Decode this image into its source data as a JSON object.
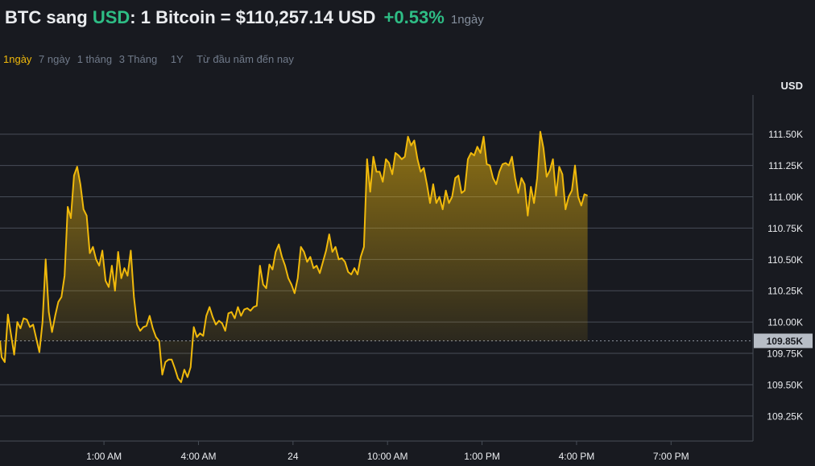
{
  "header": {
    "base": "BTC",
    "word": "sang",
    "quote": "USD",
    "sep": ":",
    "rate": "1 Bitcoin = $110,257.14 USD",
    "change": "+0.53%",
    "period": "1ngày"
  },
  "tabs": [
    "1ngày",
    "7 ngày",
    "1 tháng",
    "3 Tháng",
    "1Y",
    "Từ đầu năm đến nay"
  ],
  "active_tab": 0,
  "colors": {
    "background": "#181a20",
    "line": "#f0b90b",
    "positive": "#2ebd85",
    "grid": "#474d57",
    "axis_text": "#eaecef",
    "marker_bg": "#b7bdc6"
  },
  "chart_data": {
    "type": "area",
    "unit_label": "USD",
    "y_ticks": [
      109250,
      109500,
      109750,
      110000,
      110250,
      110500,
      110750,
      111000,
      111250,
      111500
    ],
    "y_tick_labels": [
      "109.25K",
      "109.50K",
      "109.75K",
      "110.00K",
      "110.25K",
      "110.50K",
      "110.75K",
      "111.00K",
      "111.25K",
      "111.50K"
    ],
    "ylim": [
      109050,
      111800
    ],
    "x_ticks": [
      {
        "label": "1:00 AM",
        "t": 1.0
      },
      {
        "label": "4:00 AM",
        "t": 4.0
      },
      {
        "label": "24",
        "t": 7.0
      },
      {
        "label": "10:00 AM",
        "t": 10.0
      },
      {
        "label": "1:00 PM",
        "t": 13.0
      },
      {
        "label": "4:00 PM",
        "t": 16.0
      },
      {
        "label": "7:00 PM",
        "t": 19.0
      }
    ],
    "xlim": [
      -2.3,
      21.6
    ],
    "reference_value": 109850,
    "reference_label": "109.85K",
    "series": [
      {
        "values": [
          [
            -2.3,
            109850
          ],
          [
            -2.25,
            109720
          ],
          [
            -2.15,
            109680
          ],
          [
            -2.05,
            110060
          ],
          [
            -1.95,
            109900
          ],
          [
            -1.85,
            109740
          ],
          [
            -1.75,
            110000
          ],
          [
            -1.65,
            109950
          ],
          [
            -1.55,
            110030
          ],
          [
            -1.45,
            110020
          ],
          [
            -1.35,
            109960
          ],
          [
            -1.25,
            109980
          ],
          [
            -1.15,
            109870
          ],
          [
            -1.05,
            109760
          ],
          [
            -0.95,
            110000
          ],
          [
            -0.85,
            110500
          ],
          [
            -0.75,
            110080
          ],
          [
            -0.65,
            109920
          ],
          [
            -0.55,
            110050
          ],
          [
            -0.45,
            110160
          ],
          [
            -0.35,
            110200
          ],
          [
            -0.25,
            110370
          ],
          [
            -0.15,
            110920
          ],
          [
            -0.05,
            110830
          ],
          [
            0.05,
            111170
          ],
          [
            0.15,
            111240
          ],
          [
            0.25,
            111100
          ],
          [
            0.35,
            110900
          ],
          [
            0.45,
            110850
          ],
          [
            0.55,
            110550
          ],
          [
            0.65,
            110600
          ],
          [
            0.75,
            110500
          ],
          [
            0.85,
            110450
          ],
          [
            0.95,
            110570
          ],
          [
            1.05,
            110330
          ],
          [
            1.15,
            110280
          ],
          [
            1.25,
            110450
          ],
          [
            1.35,
            110250
          ],
          [
            1.45,
            110560
          ],
          [
            1.55,
            110350
          ],
          [
            1.65,
            110430
          ],
          [
            1.75,
            110370
          ],
          [
            1.85,
            110570
          ],
          [
            1.95,
            110200
          ],
          [
            2.05,
            109980
          ],
          [
            2.15,
            109930
          ],
          [
            2.25,
            109960
          ],
          [
            2.35,
            109970
          ],
          [
            2.45,
            110050
          ],
          [
            2.55,
            109950
          ],
          [
            2.65,
            109880
          ],
          [
            2.75,
            109850
          ],
          [
            2.85,
            109580
          ],
          [
            2.95,
            109680
          ],
          [
            3.05,
            109700
          ],
          [
            3.15,
            109700
          ],
          [
            3.25,
            109630
          ],
          [
            3.35,
            109550
          ],
          [
            3.45,
            109520
          ],
          [
            3.55,
            109620
          ],
          [
            3.65,
            109560
          ],
          [
            3.75,
            109640
          ],
          [
            3.85,
            109960
          ],
          [
            3.95,
            109880
          ],
          [
            4.05,
            109910
          ],
          [
            4.15,
            109890
          ],
          [
            4.25,
            110050
          ],
          [
            4.35,
            110120
          ],
          [
            4.45,
            110040
          ],
          [
            4.55,
            109980
          ],
          [
            4.65,
            110010
          ],
          [
            4.75,
            109990
          ],
          [
            4.85,
            109930
          ],
          [
            4.95,
            110070
          ],
          [
            5.05,
            110080
          ],
          [
            5.15,
            110030
          ],
          [
            5.25,
            110120
          ],
          [
            5.35,
            110050
          ],
          [
            5.45,
            110100
          ],
          [
            5.55,
            110110
          ],
          [
            5.65,
            110090
          ],
          [
            5.75,
            110120
          ],
          [
            5.85,
            110130
          ],
          [
            5.95,
            110450
          ],
          [
            6.05,
            110300
          ],
          [
            6.15,
            110270
          ],
          [
            6.25,
            110460
          ],
          [
            6.35,
            110420
          ],
          [
            6.45,
            110560
          ],
          [
            6.55,
            110620
          ],
          [
            6.65,
            110520
          ],
          [
            6.75,
            110450
          ],
          [
            6.85,
            110350
          ],
          [
            6.95,
            110300
          ],
          [
            7.05,
            110230
          ],
          [
            7.15,
            110350
          ],
          [
            7.25,
            110600
          ],
          [
            7.35,
            110560
          ],
          [
            7.45,
            110480
          ],
          [
            7.55,
            110520
          ],
          [
            7.65,
            110430
          ],
          [
            7.75,
            110450
          ],
          [
            7.85,
            110390
          ],
          [
            7.95,
            110480
          ],
          [
            8.05,
            110570
          ],
          [
            8.15,
            110700
          ],
          [
            8.25,
            110560
          ],
          [
            8.35,
            110600
          ],
          [
            8.45,
            110500
          ],
          [
            8.55,
            110510
          ],
          [
            8.65,
            110480
          ],
          [
            8.75,
            110400
          ],
          [
            8.85,
            110380
          ],
          [
            8.95,
            110430
          ],
          [
            9.05,
            110380
          ],
          [
            9.15,
            110520
          ],
          [
            9.25,
            110600
          ],
          [
            9.35,
            111300
          ],
          [
            9.45,
            111040
          ],
          [
            9.55,
            111320
          ],
          [
            9.65,
            111200
          ],
          [
            9.75,
            111200
          ],
          [
            9.85,
            111120
          ],
          [
            9.95,
            111300
          ],
          [
            10.05,
            111270
          ],
          [
            10.15,
            111180
          ],
          [
            10.25,
            111350
          ],
          [
            10.35,
            111330
          ],
          [
            10.45,
            111300
          ],
          [
            10.55,
            111320
          ],
          [
            10.65,
            111480
          ],
          [
            10.75,
            111410
          ],
          [
            10.85,
            111450
          ],
          [
            10.95,
            111300
          ],
          [
            11.05,
            111200
          ],
          [
            11.15,
            111230
          ],
          [
            11.25,
            111100
          ],
          [
            11.35,
            110950
          ],
          [
            11.45,
            111100
          ],
          [
            11.55,
            110950
          ],
          [
            11.65,
            111000
          ],
          [
            11.75,
            110900
          ],
          [
            11.85,
            111050
          ],
          [
            11.95,
            110950
          ],
          [
            12.05,
            111000
          ],
          [
            12.15,
            111150
          ],
          [
            12.25,
            111170
          ],
          [
            12.35,
            111030
          ],
          [
            12.45,
            111050
          ],
          [
            12.55,
            111300
          ],
          [
            12.65,
            111350
          ],
          [
            12.75,
            111330
          ],
          [
            12.85,
            111400
          ],
          [
            12.95,
            111350
          ],
          [
            13.05,
            111480
          ],
          [
            13.15,
            111260
          ],
          [
            13.25,
            111250
          ],
          [
            13.35,
            111150
          ],
          [
            13.45,
            111100
          ],
          [
            13.55,
            111200
          ],
          [
            13.65,
            111260
          ],
          [
            13.75,
            111270
          ],
          [
            13.85,
            111250
          ],
          [
            13.95,
            111320
          ],
          [
            14.05,
            111150
          ],
          [
            14.15,
            111030
          ],
          [
            14.25,
            111150
          ],
          [
            14.35,
            111100
          ],
          [
            14.45,
            110850
          ],
          [
            14.55,
            111080
          ],
          [
            14.65,
            110950
          ],
          [
            14.75,
            111150
          ],
          [
            14.85,
            111520
          ],
          [
            14.95,
            111390
          ],
          [
            15.05,
            111160
          ],
          [
            15.15,
            111210
          ],
          [
            15.25,
            111300
          ],
          [
            15.35,
            111010
          ],
          [
            15.45,
            111240
          ],
          [
            15.55,
            111180
          ],
          [
            15.65,
            110900
          ],
          [
            15.75,
            111000
          ],
          [
            15.85,
            111050
          ],
          [
            15.95,
            111250
          ],
          [
            16.05,
            111000
          ],
          [
            16.15,
            110930
          ],
          [
            16.25,
            111020
          ],
          [
            16.35,
            111010
          ]
        ]
      }
    ]
  }
}
